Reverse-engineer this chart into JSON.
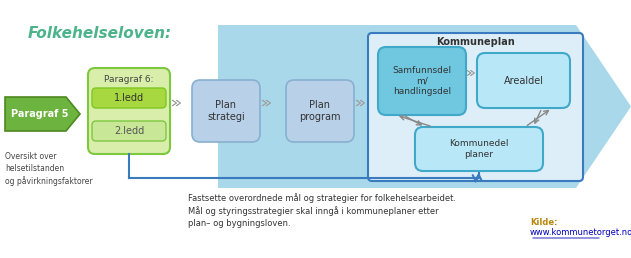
{
  "title": "Folkehelseloven:",
  "title_color": "#4db38a",
  "bg_color": "#ffffff",
  "kommuneplan_label": "Kommuneplan",
  "paragraf5_text": "Paragraf 5",
  "paragraf6_label": "Paragraf 6:",
  "ledd1_text": "1.ledd",
  "ledd2_text": "2.ledd",
  "plan_strat_text": "Plan\nstrategi",
  "plan_prog_text": "Plan\nprogram",
  "samfunn_text": "Samfunnsdel\nm/\nhandlingsdel",
  "areal_text": "Arealdel",
  "kommunedel_text": "Kommunedel\nplaner",
  "oversikt_text": "Oversikt over\nhelsetilstanden\nog påvirkningsfaktorer",
  "bottom_text": "Fastsette overordnede mål og strategier for folkehelsearbeidet.\nMål og styringsstrategier skal inngå i kommuneplaner etter\nplan– og bygningsloven.",
  "kilde_label": "Kilde:",
  "kilde_url": "www.kommunetorget.no",
  "kilde_color": "#b8860b",
  "link_color": "#0000bb"
}
